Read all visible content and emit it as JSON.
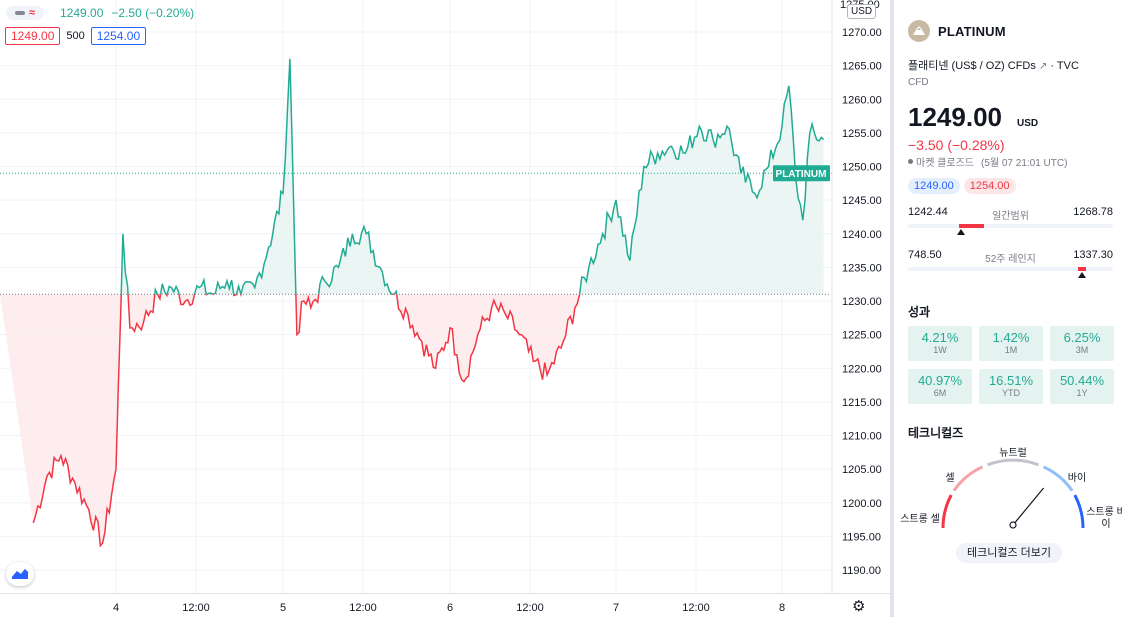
{
  "legend": {
    "price": "1249.00",
    "change": "−2.50 (−0.20%)",
    "bid": "1249.00",
    "spread": "500",
    "ask": "1254.00"
  },
  "axis": {
    "currency": "USD",
    "y_ticks": [
      "1270.00",
      "1265.00",
      "1260.00",
      "1255.00",
      "1250.00",
      "1245.00",
      "1240.00",
      "1235.00",
      "1230.00",
      "1225.00",
      "1220.00",
      "1215.00",
      "1210.00",
      "1205.00",
      "1200.00",
      "1195.00",
      "1190.00"
    ],
    "y_partial_top": "1275.00",
    "x_ticks": [
      "4",
      "12:00",
      "5",
      "12:00",
      "6",
      "12:00",
      "7",
      "12:00",
      "8"
    ],
    "price_label": "PLATINUM"
  },
  "chart_data": {
    "type": "area",
    "title": "",
    "baseline": 1231.0,
    "current_price": 1249.0,
    "ylim": [
      1186,
      1274
    ],
    "x": [
      "3 12:00",
      "3 14:00",
      "3 16:00",
      "3 18:00",
      "3 20:00",
      "3 22:00",
      "4 00:00",
      "4 01:00",
      "4 02:00",
      "4 04:00",
      "4 06:00",
      "4 08:00",
      "4 10:00",
      "4 12:00",
      "4 14:00",
      "4 16:00",
      "4 18:00",
      "4 20:00",
      "4 22:00",
      "5 00:00",
      "5 01:00",
      "5 02:00",
      "5 03:00",
      "5 04:00",
      "5 06:00",
      "5 08:00",
      "5 10:00",
      "5 12:00",
      "5 14:00",
      "5 16:00",
      "5 18:00",
      "5 20:00",
      "5 22:00",
      "6 00:00",
      "6 01:00",
      "6 02:00",
      "6 04:00",
      "6 06:00",
      "6 08:00",
      "6 10:00",
      "6 12:00",
      "6 14:00",
      "6 16:00",
      "6 18:00",
      "6 20:00",
      "6 22:00",
      "7 00:00",
      "7 02:00",
      "7 04:00",
      "7 06:00",
      "7 08:00",
      "7 10:00",
      "7 12:00",
      "7 14:00",
      "7 16:00",
      "7 18:00",
      "7 20:00",
      "7 22:00",
      "8 00:00",
      "8 01:00",
      "8 02:00",
      "8 03:00",
      "8 04:00",
      "8 06:00"
    ],
    "values": [
      1197,
      1204,
      1207,
      1203,
      1199,
      1194,
      1205,
      1240,
      1226,
      1227,
      1231,
      1232,
      1230,
      1232,
      1231,
      1233,
      1231,
      1232,
      1238,
      1246,
      1266,
      1225,
      1230,
      1229,
      1233,
      1235,
      1240,
      1240,
      1235,
      1231,
      1228,
      1224,
      1220,
      1226,
      1222,
      1218,
      1225,
      1229,
      1228,
      1225,
      1221,
      1219,
      1223,
      1229,
      1235,
      1240,
      1245,
      1236,
      1250,
      1252,
      1253,
      1252,
      1256,
      1254,
      1256,
      1249,
      1246,
      1250,
      1256,
      1262,
      1248,
      1242,
      1255,
      1254
    ]
  },
  "panel": {
    "symbol": "PLATINUM",
    "description": "플래티넨 (US$ / OZ) CFDs",
    "source": "· TVC",
    "type": "CFD",
    "price": "1249.00",
    "currency": "USD",
    "change": "−3.50 (−0.28%)",
    "market_status": "마켓 클로즈드",
    "market_time": "(5월 07 21:01 UTC)",
    "bid": "1249.00",
    "ask": "1254.00",
    "day_range": {
      "low": "1242.44",
      "label": "일간범위",
      "high": "1268.78",
      "current": 1249.0
    },
    "week52_range": {
      "low": "748.50",
      "label": "52주 레인지",
      "high": "1337.30",
      "current": 1249.0
    },
    "performance_title": "성과",
    "performance": [
      {
        "value": "4.21%",
        "label": "1W"
      },
      {
        "value": "1.42%",
        "label": "1M"
      },
      {
        "value": "6.25%",
        "label": "3M"
      },
      {
        "value": "40.97%",
        "label": "6M"
      },
      {
        "value": "16.51%",
        "label": "YTD"
      },
      {
        "value": "50.44%",
        "label": "1Y"
      }
    ],
    "technicals_title": "테크니컬즈",
    "gauge": {
      "neutral": "뉴트럴",
      "sell": "셀",
      "buy": "바이",
      "strong_sell": "스트롱 셀",
      "strong_buy_line1": "스트롱 바",
      "strong_buy_line2": "이",
      "level": 0.72
    },
    "technicals_button": "테크니컬즈 더보기"
  },
  "colors": {
    "up": "#22ab94",
    "down": "#f23645",
    "up_fill": "#e6f4f1",
    "down_fill": "#fde9ea"
  }
}
